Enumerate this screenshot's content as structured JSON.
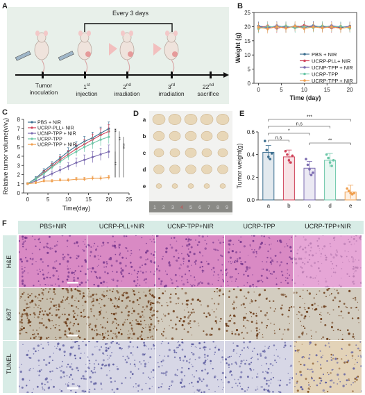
{
  "panels": {
    "a": "A",
    "b": "B",
    "c": "C",
    "d": "D",
    "e": "E",
    "f": "F"
  },
  "panel_a": {
    "every": "Every 3 days",
    "steps": [
      {
        "line1": "Tumor",
        "line2": "inoculation",
        "sup": ""
      },
      {
        "line1": "1",
        "sup": "st",
        "line2": "injection"
      },
      {
        "line1": "2",
        "sup": "nd",
        "line2": "irradiation"
      },
      {
        "line1": "3",
        "sup": "rd",
        "line2": "irradiation"
      },
      {
        "line1": "22",
        "sup": "nd",
        "line2": "sacrifice"
      }
    ]
  },
  "colors": {
    "pbs": "#3b6e8f",
    "pll": "#d0435a",
    "tpp_nir": "#7b6bb0",
    "tpp": "#6cc7a8",
    "ucrp_tpp_nir": "#f0a050",
    "panel_bg": "#e8f0ea",
    "header_bg": "#d8ece6"
  },
  "chart_data": [
    {
      "type": "line",
      "panel": "B",
      "xlabel": "Time (day)",
      "ylabel": "Weight (g)",
      "xlim": [
        -1,
        21.5
      ],
      "ylim": [
        0,
        25
      ],
      "xticks": [
        0,
        5,
        10,
        15,
        20
      ],
      "yticks": [
        0,
        5,
        10,
        15,
        20,
        25
      ],
      "x": [
        0,
        2,
        4,
        6,
        8,
        10,
        12,
        14,
        16,
        18,
        20
      ],
      "legend": [
        "PBS + NIR",
        "UCRP-PLL+ NIR",
        "UCNP-TPP + NIR",
        "UCRP-TPP",
        "UCRP-TPP + NIR"
      ],
      "series": [
        {
          "name": "PBS + NIR",
          "values": [
            20.2,
            19.8,
            20.1,
            19.5,
            20.3,
            19.9,
            20.4,
            19.8,
            20.1,
            19.6,
            20.2
          ]
        },
        {
          "name": "UCRP-PLL+ NIR",
          "values": [
            19.6,
            20.3,
            19.4,
            20.1,
            19.7,
            20.5,
            19.9,
            20.2,
            19.5,
            20.0,
            19.7
          ]
        },
        {
          "name": "UCNP-TPP + NIR",
          "values": [
            20.0,
            19.5,
            20.4,
            19.8,
            20.0,
            19.6,
            20.2,
            19.7,
            20.4,
            19.9,
            20.1
          ]
        },
        {
          "name": "UCRP-TPP",
          "values": [
            19.3,
            20.1,
            19.8,
            20.3,
            19.5,
            20.0,
            19.6,
            20.3,
            19.8,
            20.2,
            19.4
          ]
        },
        {
          "name": "UCRP-TPP + NIR",
          "values": [
            19.8,
            19.2,
            20.0,
            19.4,
            20.2,
            19.3,
            19.9,
            19.5,
            20.0,
            19.3,
            19.9
          ]
        }
      ]
    },
    {
      "type": "line",
      "panel": "C",
      "xlabel": "Time(day)",
      "ylabel": "Relative tumor volume(v/v",
      "ylabel_sub": "0",
      "ylabel_close": ")",
      "xlim": [
        -1,
        25
      ],
      "ylim": [
        0,
        8
      ],
      "xticks": [
        0,
        5,
        10,
        15,
        20,
        25
      ],
      "yticks": [
        0,
        1,
        2,
        3,
        4,
        5,
        6,
        7,
        8
      ],
      "x": [
        0,
        2,
        4,
        6,
        8,
        10,
        12,
        14,
        16,
        18,
        20
      ],
      "legend": [
        "PBS + NIR",
        "UCRP-PLL+ NIR",
        "UCNP-TPP + NIR",
        "UCRP-TPP",
        "UCRP-TPP + NIR"
      ],
      "series": [
        {
          "name": "PBS + NIR",
          "values": [
            1.0,
            1.6,
            2.4,
            3.1,
            3.8,
            4.5,
            5.1,
            5.6,
            6.0,
            6.5,
            7.0
          ]
        },
        {
          "name": "UCRP-PLL+ NIR",
          "values": [
            1.0,
            1.5,
            2.2,
            2.9,
            3.6,
            4.2,
            4.8,
            5.3,
            5.8,
            6.3,
            6.7
          ]
        },
        {
          "name": "UCNP-TPP + NIR",
          "values": [
            1.0,
            1.3,
            1.7,
            2.1,
            2.5,
            2.9,
            3.3,
            3.6,
            3.9,
            4.2,
            4.5
          ]
        },
        {
          "name": "UCRP-TPP",
          "values": [
            1.0,
            1.5,
            2.1,
            2.8,
            3.4,
            4.0,
            4.5,
            5.0,
            5.4,
            5.8,
            6.1
          ]
        },
        {
          "name": "UCRP-TPP + NIR",
          "values": [
            1.0,
            1.1,
            1.3,
            1.3,
            1.4,
            1.4,
            1.5,
            1.5,
            1.6,
            1.6,
            1.7
          ]
        }
      ],
      "significance": [
        "**",
        "**",
        "***",
        "**"
      ]
    },
    {
      "type": "bar",
      "panel": "E",
      "ylabel": "Tumor weight(g)",
      "ylim": [
        0,
        0.6
      ],
      "yticks": [
        "0.0",
        "0.2",
        "0.4",
        "0.6"
      ],
      "categories": [
        "a",
        "b",
        "c",
        "d",
        "e"
      ],
      "values": [
        0.42,
        0.38,
        0.28,
        0.35,
        0.07
      ],
      "points": [
        [
          0.52,
          0.44,
          0.38,
          0.36,
          0.41
        ],
        [
          0.43,
          0.4,
          0.35,
          0.33,
          0.39
        ],
        [
          0.36,
          0.31,
          0.27,
          0.22,
          0.24
        ],
        [
          0.4,
          0.37,
          0.33,
          0.3,
          0.35
        ],
        [
          0.1,
          0.08,
          0.06,
          0.05,
          0.06
        ]
      ],
      "significance": [
        {
          "label": "***",
          "from": "a",
          "to": "e"
        },
        {
          "label": "n.s",
          "from": "a",
          "to": "d"
        },
        {
          "label": "*",
          "from": "a",
          "to": "c"
        },
        {
          "label": "n.s",
          "from": "a",
          "to": "b"
        },
        {
          "label": "**",
          "from": "c",
          "to": "e"
        }
      ]
    }
  ],
  "panel_d": {
    "rows": [
      "a",
      "b",
      "c",
      "d",
      "e"
    ],
    "ruler": [
      "1",
      "2",
      "3",
      "4",
      "5",
      "6",
      "7",
      "8",
      "9"
    ]
  },
  "panel_f": {
    "columns": [
      "PBS+NIR",
      "UCRP-PLL+NIR",
      "UCNP-TPP+NIR",
      "UCRP-TPP",
      "UCRP-TPP+NIR"
    ],
    "rows": [
      "H&E",
      "Ki67",
      "TUNEL"
    ]
  }
}
